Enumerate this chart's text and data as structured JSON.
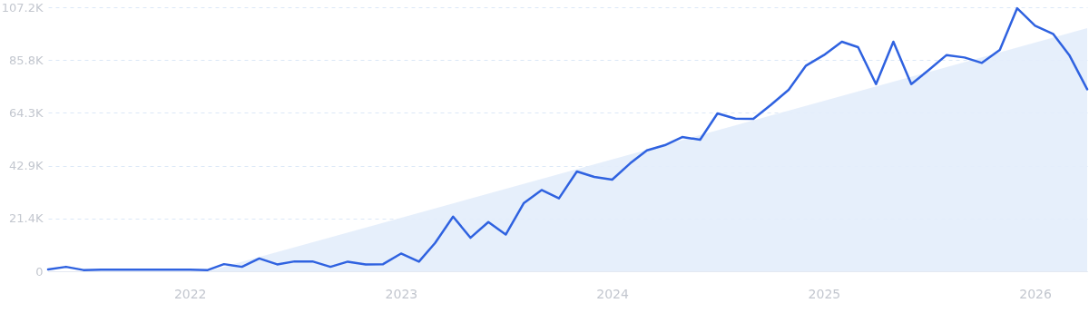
{
  "chart_data": {
    "type": "line",
    "x": [
      "2021-05",
      "2021-06",
      "2021-07",
      "2021-08",
      "2021-09",
      "2021-10",
      "2021-11",
      "2021-12",
      "2022-01",
      "2022-02",
      "2022-03",
      "2022-04",
      "2022-05",
      "2022-06",
      "2022-07",
      "2022-08",
      "2022-09",
      "2022-10",
      "2022-11",
      "2022-12",
      "2023-01",
      "2023-02",
      "2023-03",
      "2023-04",
      "2023-05",
      "2023-06",
      "2023-07",
      "2023-08",
      "2023-09",
      "2023-10",
      "2023-11",
      "2023-12",
      "2024-01",
      "2024-02",
      "2024-03",
      "2024-04",
      "2024-05",
      "2024-06",
      "2024-07",
      "2024-08",
      "2024-09",
      "2024-10",
      "2024-11",
      "2024-12",
      "2025-01",
      "2025-02",
      "2025-03",
      "2025-04",
      "2025-05",
      "2025-06",
      "2025-07",
      "2025-08",
      "2025-09",
      "2025-10",
      "2025-11",
      "2025-12",
      "2026-01",
      "2026-02",
      "2026-03",
      "2026-04"
    ],
    "series": [
      {
        "type": "area",
        "color": "#e3edfb",
        "x": [
          "2022-02",
          "2026-04"
        ],
        "values": [
          0,
          98700
        ]
      },
      {
        "color": "#2f62e0",
        "values": [
          700,
          1800,
          500,
          600,
          600,
          600,
          600,
          600,
          600,
          500,
          2900,
          1800,
          5200,
          2800,
          4000,
          4000,
          1800,
          3900,
          2800,
          2900,
          7200,
          3900,
          11500,
          22200,
          13600,
          20000,
          14900,
          27600,
          33000,
          29600,
          40500,
          38300,
          37200,
          43800,
          49100,
          51200,
          54500,
          53400,
          64100,
          62000,
          61900,
          67500,
          73700,
          83500,
          87800,
          93200,
          91000,
          76000,
          93200,
          76000,
          81700,
          87800,
          86800,
          84600,
          89900,
          106800,
          99700,
          96400,
          87800,
          73900
        ]
      }
    ],
    "xlim": [
      "2021-05",
      "2026-04"
    ],
    "xticks": [
      "2022",
      "2023",
      "2024",
      "2025",
      "2026"
    ],
    "ylim": [
      0,
      107200
    ],
    "yticks": [
      0,
      {
        "value": 21400,
        "label": "21.4K"
      },
      {
        "value": 42900,
        "label": "42.9K"
      },
      {
        "value": 64300,
        "label": "64.3K"
      },
      {
        "value": 85800,
        "label": "85.8K"
      },
      {
        "value": 107200,
        "label": "107.2K"
      }
    ],
    "grid": "y",
    "line_style": "solid"
  }
}
